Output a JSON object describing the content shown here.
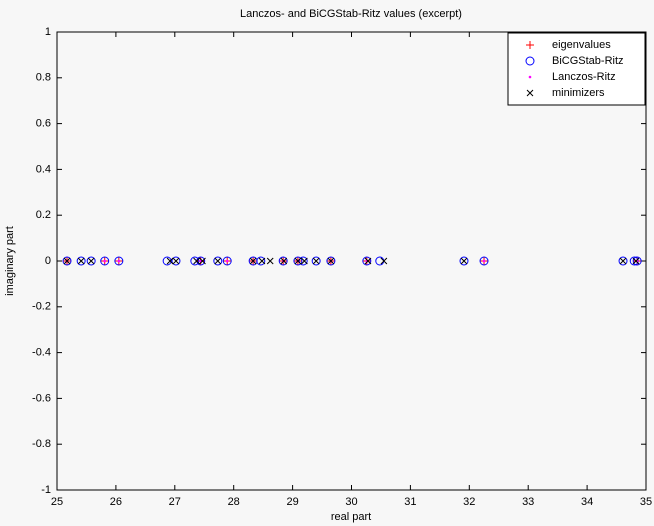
{
  "chart_data": {
    "type": "scatter",
    "title": "Lanczos- and BiCGStab-Ritz values (excerpt)",
    "x_label": "real part",
    "y_label": "imaginary part",
    "xlim": [
      25,
      35
    ],
    "xticks": [
      25,
      26,
      27,
      28,
      29,
      30,
      31,
      32,
      33,
      34,
      35
    ],
    "ylim": [
      -1,
      1
    ],
    "yticks": [
      -1,
      -0.8,
      -0.6,
      -0.4,
      -0.2,
      0,
      0.2,
      0.4,
      0.6,
      0.8,
      1
    ],
    "legend": "upper right",
    "series": [
      {
        "name": "eigenvalues",
        "color": "#ff0000",
        "marker": "+",
        "x": [
          25.17,
          25.81,
          26.05,
          27.44,
          27.89,
          28.33,
          28.84,
          29.09,
          29.65,
          30.26,
          32.25,
          34.85
        ],
        "values": [
          0,
          0,
          0,
          0,
          0,
          0,
          0,
          0,
          0,
          0,
          0,
          0
        ]
      },
      {
        "name": "BiCGStab-Ritz",
        "color": "#0000ff",
        "marker": "o",
        "x": [
          25.17,
          25.41,
          25.58,
          25.81,
          26.05,
          26.87,
          27.02,
          27.34,
          27.44,
          27.73,
          27.89,
          28.33,
          28.46,
          28.84,
          29.09,
          29.18,
          29.4,
          29.65,
          30.26,
          30.48,
          31.91,
          32.25,
          34.61,
          34.8,
          34.85
        ],
        "values": [
          0,
          0,
          0,
          0,
          0,
          0,
          0,
          0,
          0,
          0,
          0,
          0,
          0,
          0,
          0,
          0,
          0,
          0,
          0,
          0,
          0,
          0,
          0,
          0,
          0
        ]
      },
      {
        "name": "Lanczos-Ritz",
        "color": "#ff00ff",
        "marker": ".",
        "x": [
          25.17,
          25.81,
          26.05,
          27.44,
          27.89,
          28.33,
          28.84,
          29.09,
          29.65,
          30.26,
          32.25,
          34.85
        ],
        "values": [
          0,
          0,
          0,
          0,
          0,
          0,
          0,
          0,
          0,
          0,
          0,
          0
        ]
      },
      {
        "name": "minimizers",
        "color": "#000000",
        "marker": "x",
        "x": [
          25.17,
          25.41,
          25.58,
          26.92,
          27.02,
          27.37,
          27.47,
          27.73,
          28.33,
          28.48,
          28.62,
          28.85,
          29.09,
          29.2,
          29.4,
          29.65,
          30.28,
          30.55,
          31.91,
          34.61,
          34.83
        ],
        "values": [
          0,
          0,
          0,
          0,
          0,
          0,
          0,
          0,
          0,
          0,
          0,
          0,
          0,
          0,
          0,
          0,
          0,
          0,
          0,
          0,
          0
        ]
      }
    ]
  }
}
